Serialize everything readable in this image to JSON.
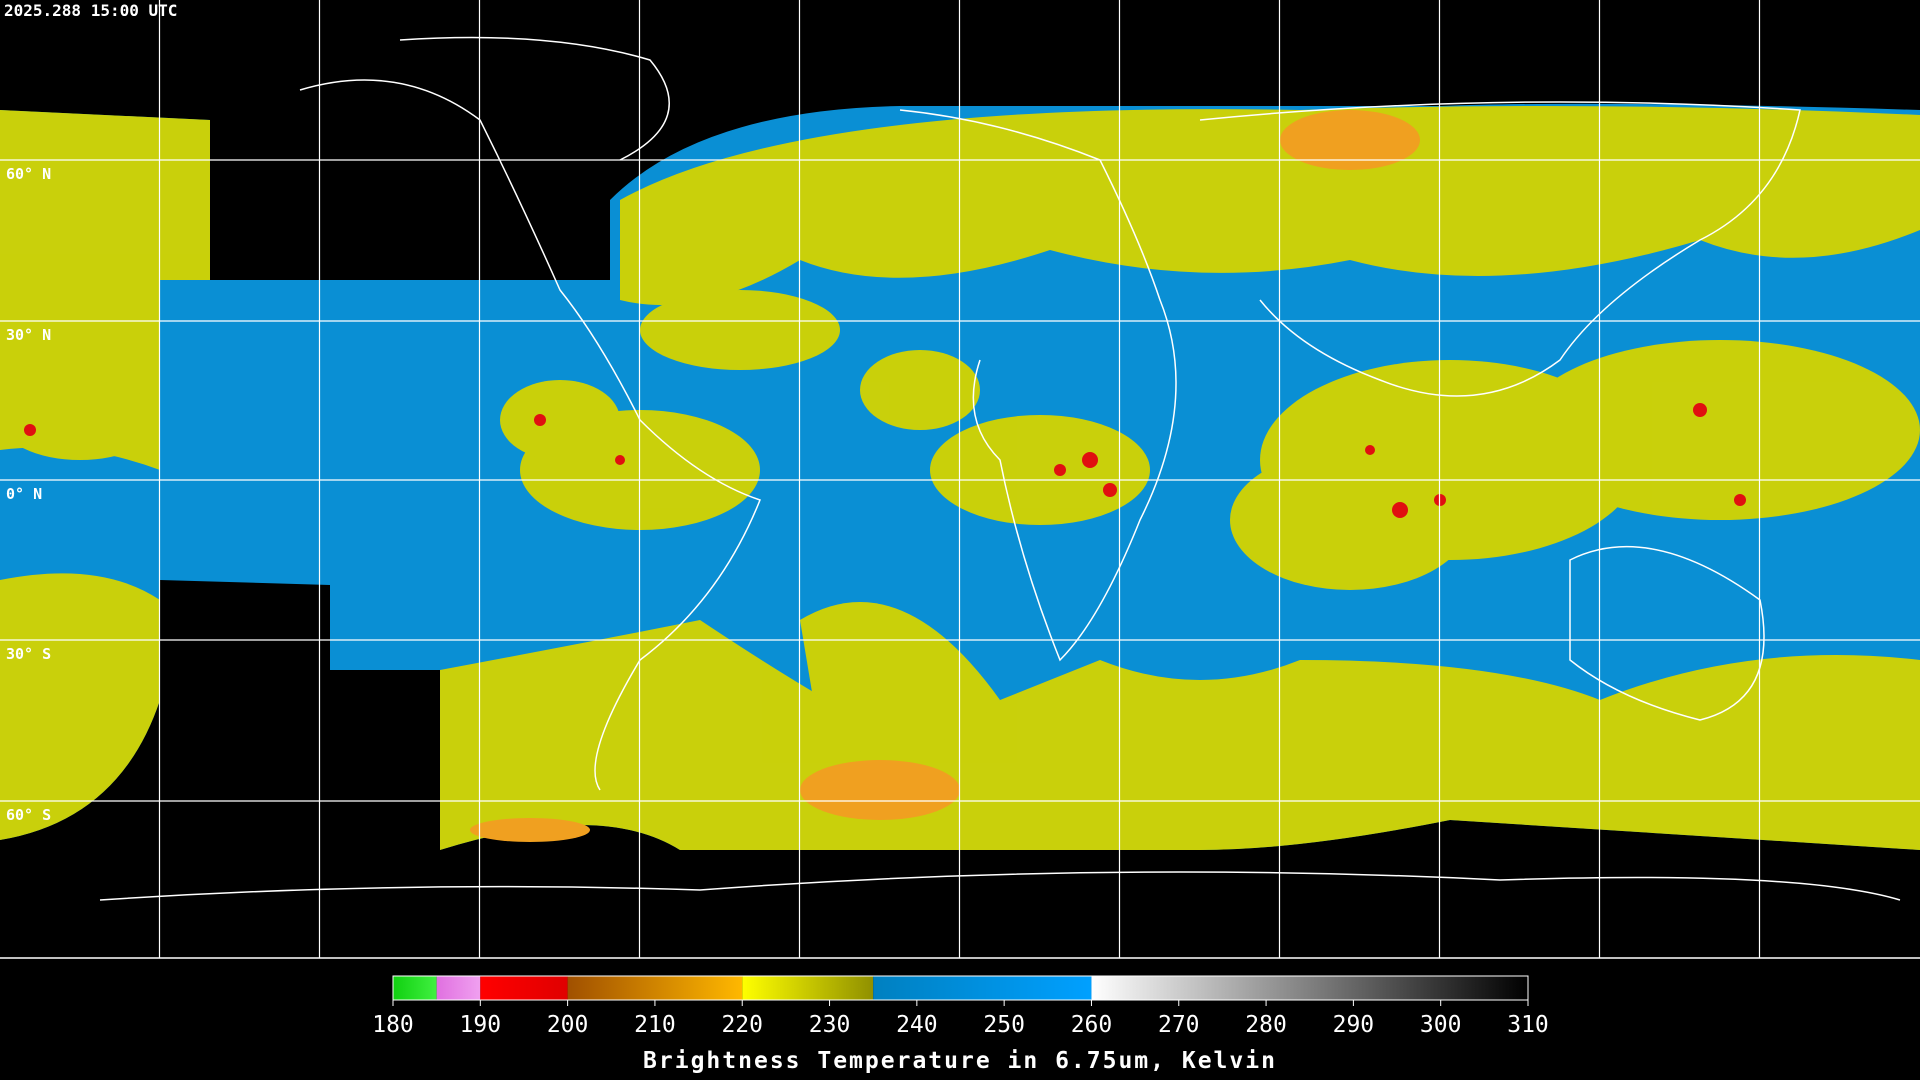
{
  "header": {
    "timestamp": "2025.288 15:00 UTC"
  },
  "map": {
    "lat_labels": [
      "60° N",
      "30° N",
      "0° N",
      "30° S",
      "60° S"
    ]
  },
  "colorbar": {
    "range": [
      180,
      310
    ],
    "ticks": [
      180,
      190,
      200,
      210,
      220,
      230,
      240,
      250,
      260,
      270,
      280,
      290,
      300,
      310
    ],
    "label": "Brightness Temperature in 6.75um, Kelvin",
    "segments": [
      {
        "range": [
          180,
          185
        ],
        "colors": [
          "#10d010",
          "#40f040"
        ]
      },
      {
        "range": [
          185,
          190
        ],
        "colors": [
          "#e070e0",
          "#f0a0f0"
        ]
      },
      {
        "range": [
          190,
          200
        ],
        "colors": [
          "#ff0000",
          "#e00000"
        ]
      },
      {
        "range": [
          200,
          220
        ],
        "colors": [
          "#a05000",
          "#ffb800"
        ]
      },
      {
        "range": [
          220,
          235
        ],
        "colors": [
          "#ffff00",
          "#909000"
        ]
      },
      {
        "range": [
          235,
          260
        ],
        "colors": [
          "#0080c0",
          "#00a0ff"
        ]
      },
      {
        "range": [
          260,
          310
        ],
        "colors": [
          "#ffffff",
          "#000000"
        ]
      }
    ]
  }
}
